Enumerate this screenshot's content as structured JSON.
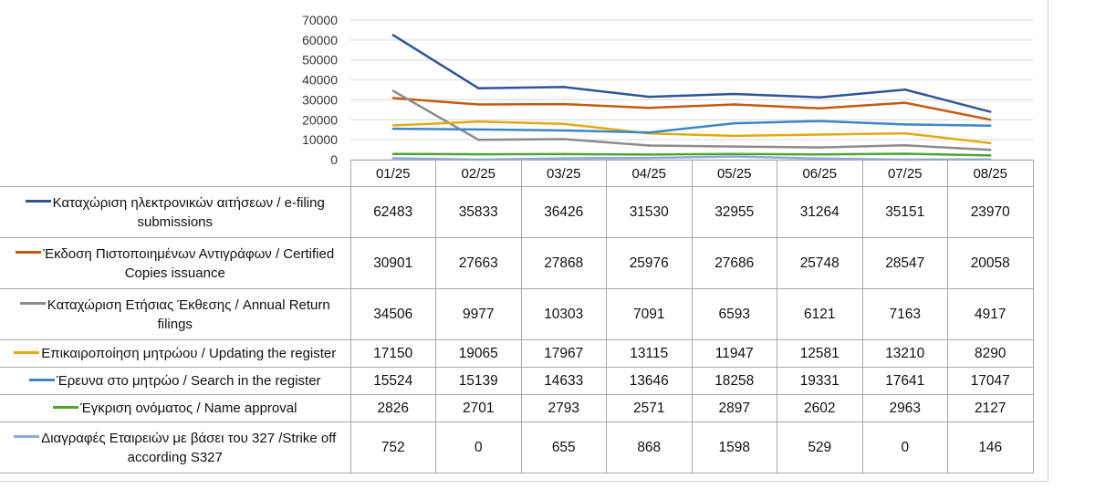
{
  "chart_data": {
    "type": "line",
    "title": "",
    "xlabel": "",
    "ylabel": "",
    "ylim": [
      0,
      70000
    ],
    "yticks": [
      0,
      10000,
      20000,
      30000,
      40000,
      50000,
      60000,
      70000
    ],
    "grid": true,
    "legend": "left, in data table",
    "categories": [
      "01/25",
      "02/25",
      "03/25",
      "04/25",
      "05/25",
      "06/25",
      "07/25",
      "08/25"
    ],
    "series": [
      {
        "name": "Καταχώριση ηλεκτρονικών αιτήσεων / e-filing submissions",
        "color": "#2f5597",
        "values": [
          62483,
          35833,
          36426,
          31530,
          32955,
          31264,
          35151,
          23970
        ]
      },
      {
        "name": "Έκδοση Πιστοποιημένων Αντιγράφων / Certified Copies issuance",
        "color": "#c55a11",
        "values": [
          30901,
          27663,
          27868,
          25976,
          27686,
          25748,
          28547,
          20058
        ]
      },
      {
        "name": "Καταχώριση Ετήσιας Έκθεσης / Annual Return filings",
        "color": "#8c8c8c",
        "values": [
          34506,
          9977,
          10303,
          7091,
          6593,
          6121,
          7163,
          4917
        ]
      },
      {
        "name": "Επικαιροποίηση μητρώου / Updating the register",
        "color": "#e0ab10",
        "values": [
          17150,
          19065,
          17967,
          13115,
          11947,
          12581,
          13210,
          8290
        ]
      },
      {
        "name": "Έρευνα στο μητρώο / Search in the register",
        "color": "#3d86c6",
        "values": [
          15524,
          15139,
          14633,
          13646,
          18258,
          19331,
          17641,
          17047
        ]
      },
      {
        "name": "Έγκριση ονόματος / Name approval",
        "color": "#4ea72e",
        "values": [
          2826,
          2701,
          2793,
          2571,
          2897,
          2602,
          2963,
          2127
        ]
      },
      {
        "name": "Διαγραφές Εταιρειών με βάσει του 327 /Strike off according S327",
        "color": "#8fa9dc",
        "values": [
          752,
          0,
          655,
          868,
          1598,
          529,
          0,
          146
        ]
      }
    ]
  }
}
